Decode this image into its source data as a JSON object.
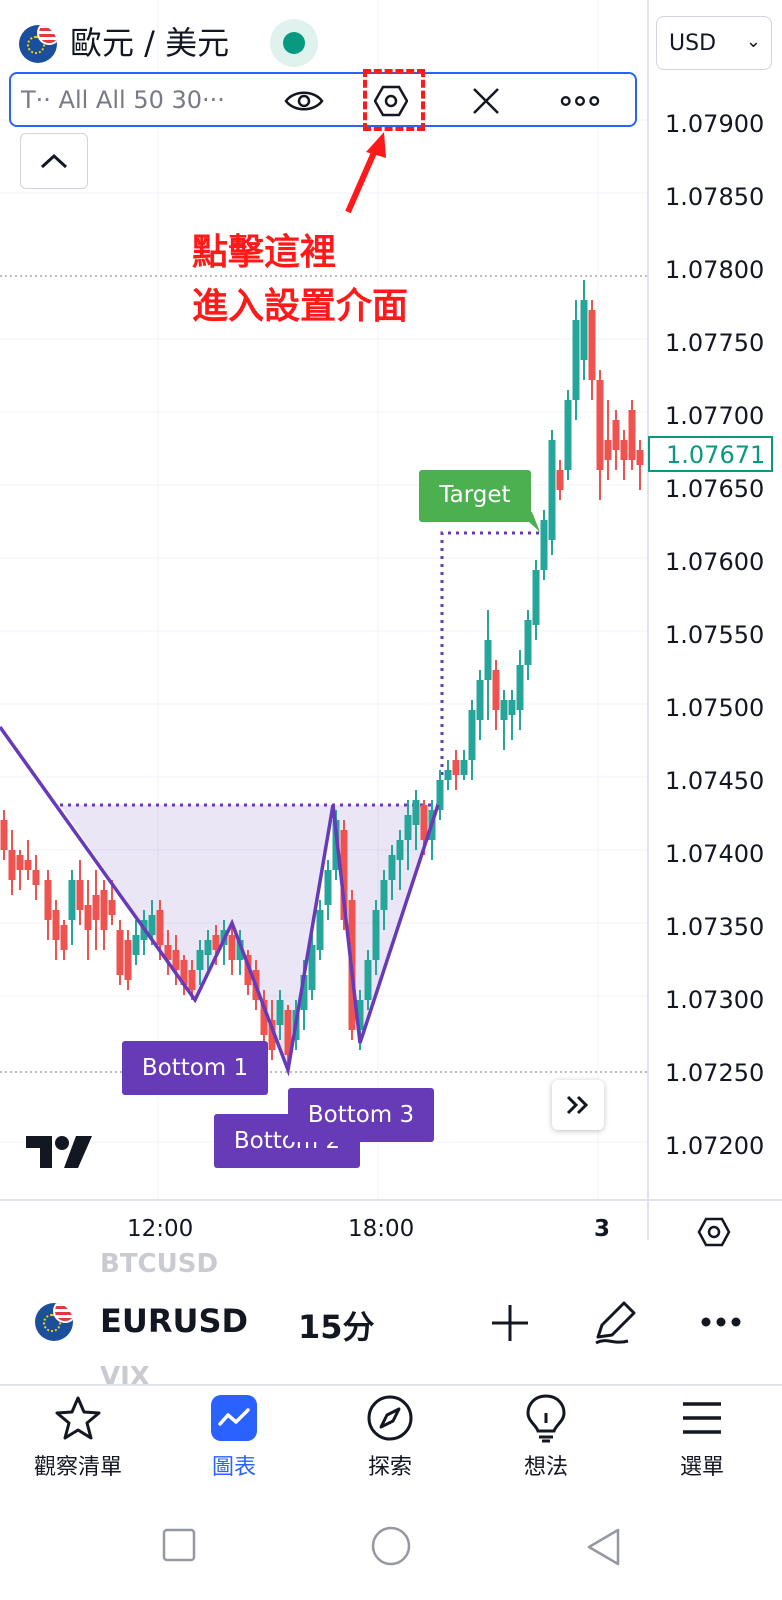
{
  "header": {
    "symbol_title": "歐元 / 美元",
    "currency": "USD"
  },
  "indicator_bar": {
    "text": "T·· All All 50 30···"
  },
  "annotation": {
    "line1": "點擊這裡",
    "line2": "進入設置介面"
  },
  "price_axis": {
    "labels": [
      "1.07900",
      "1.07850",
      "1.07800",
      "1.07750",
      "1.07700",
      "1.07650",
      "1.07600",
      "1.07550",
      "1.07500",
      "1.07450",
      "1.07400",
      "1.07350",
      "1.07300",
      "1.07250",
      "1.07200"
    ],
    "last_price": "1.07671"
  },
  "time_axis": {
    "labels": [
      "12:00",
      "18:00",
      "3"
    ]
  },
  "pattern": {
    "target_label": "Target",
    "bottom1": "Bottom 1",
    "bottom2": "Bottom 2",
    "bottom3": "Bottom 3"
  },
  "symbol_bar": {
    "ghost_above": "BTCUSD",
    "ghost_below": "VIX",
    "symbol": "EURUSD",
    "timeframe": "15分"
  },
  "bottom_nav": {
    "items": [
      "觀察清單",
      "圖表",
      "探索",
      "想法",
      "選單"
    ]
  },
  "colors": {
    "up": "#26a69a",
    "down": "#ef5350",
    "accent": "#2962ff",
    "pattern": "#673ab7",
    "annotation": "#ff1a1a"
  }
}
